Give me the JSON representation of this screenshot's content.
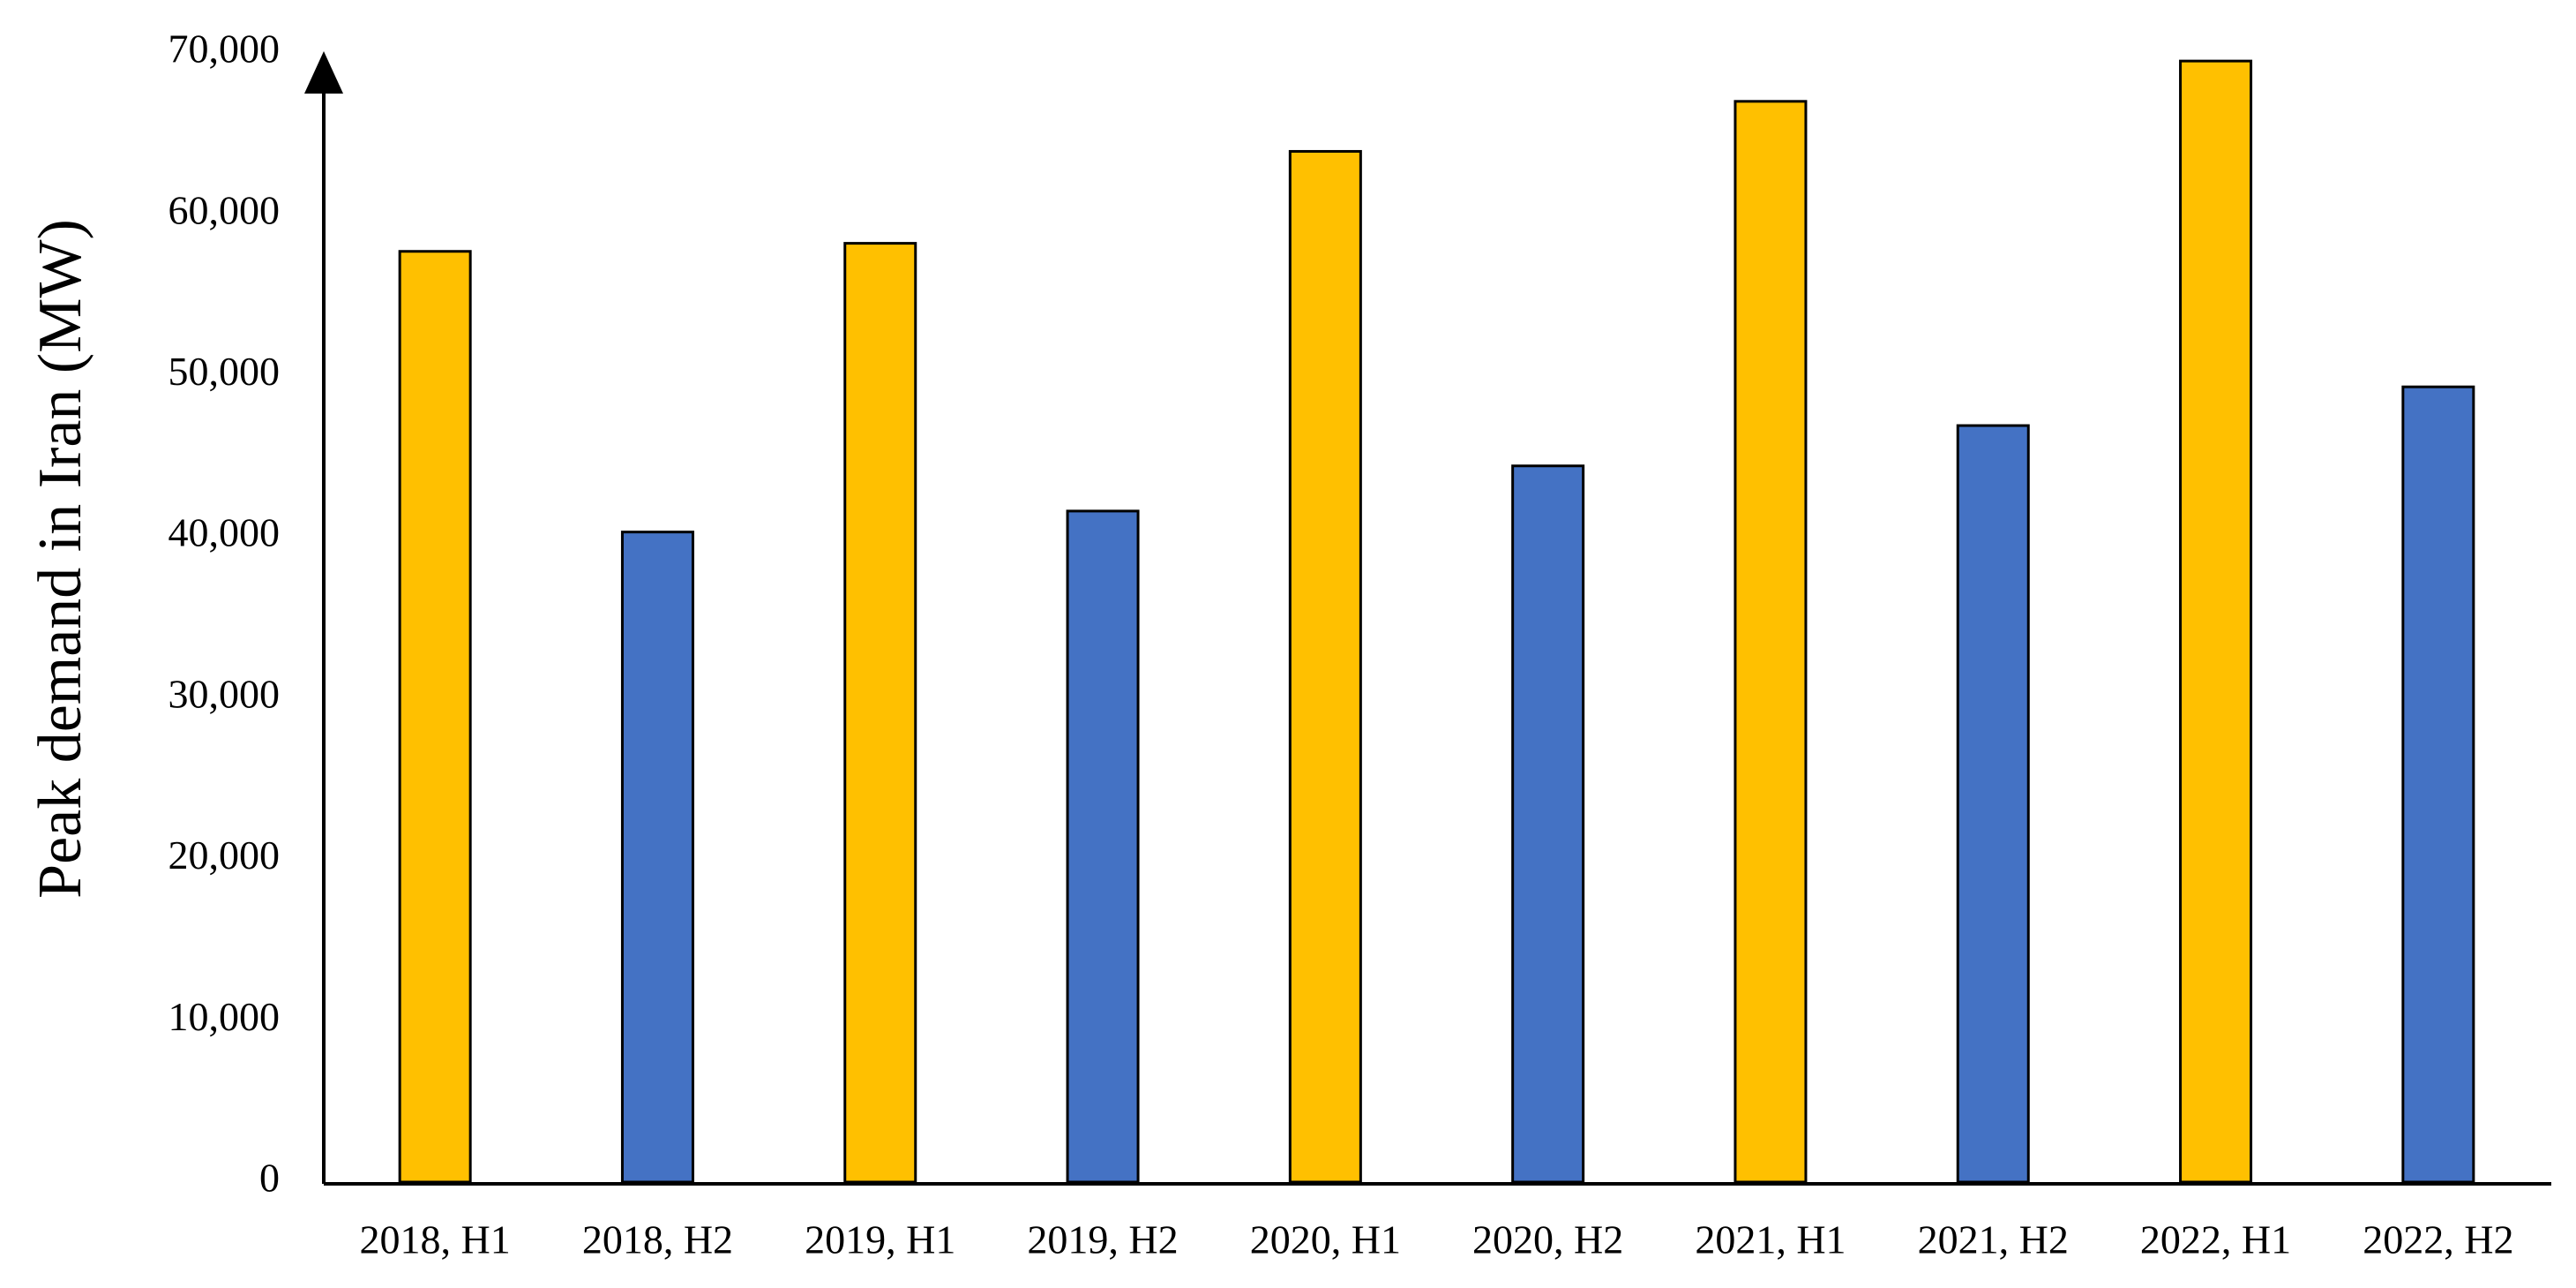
{
  "chart_data": {
    "type": "bar",
    "y_axis_label": "Peak demand in Iran (MW)",
    "categories": [
      "2018, H1",
      "2018, H2",
      "2019, H1",
      "2019, H2",
      "2020, H1",
      "2020, H2",
      "2021, H1",
      "2021, H2",
      "2022, H1",
      "2022, H2"
    ],
    "values": [
      57700,
      40300,
      58200,
      41600,
      63900,
      44400,
      67000,
      46900,
      69500,
      49300
    ],
    "colors": [
      "#ffc000",
      "#4472c4",
      "#ffc000",
      "#4472c4",
      "#ffc000",
      "#4472c4",
      "#ffc000",
      "#4472c4",
      "#ffc000",
      "#4472c4"
    ],
    "ylim": [
      0,
      70000
    ],
    "yticks": [
      0,
      {
        "value": 10000,
        "label": "10,000"
      },
      {
        "value": 20000,
        "label": "20,000"
      },
      {
        "value": 30000,
        "label": "30,000"
      },
      {
        "value": 40000,
        "label": "40,000"
      },
      {
        "value": 50000,
        "label": "50,000"
      },
      {
        "value": 60000,
        "label": "60,000"
      },
      {
        "value": 70000,
        "label": "70,000"
      }
    ],
    "grid": false
  }
}
